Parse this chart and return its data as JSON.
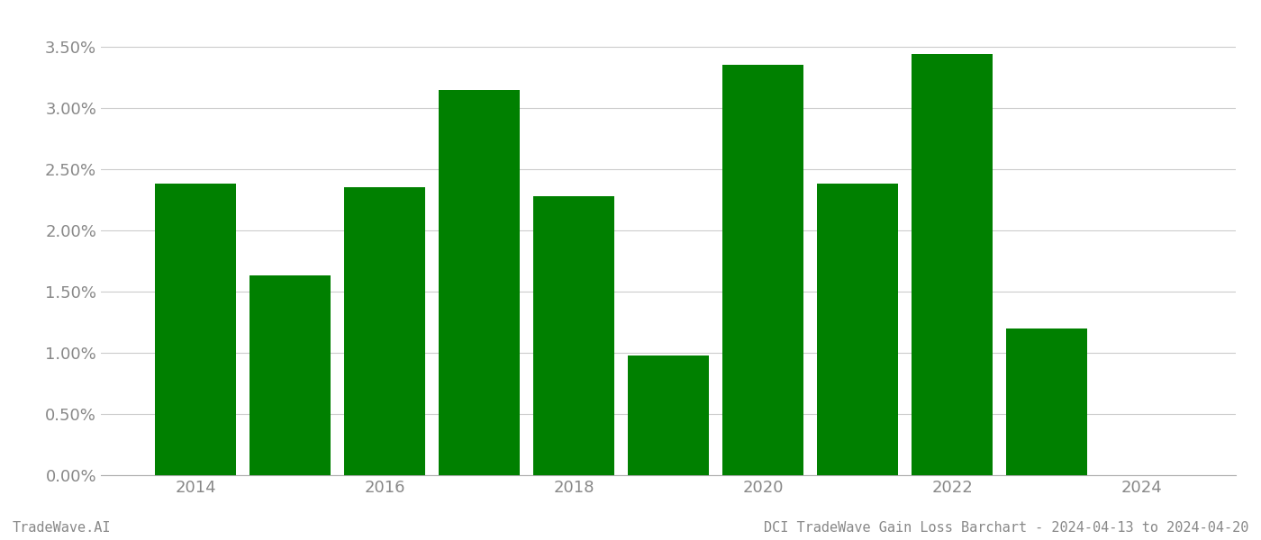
{
  "years": [
    2014,
    2015,
    2016,
    2017,
    2018,
    2019,
    2020,
    2021,
    2022,
    2023
  ],
  "values": [
    0.0238,
    0.0163,
    0.0235,
    0.0315,
    0.0228,
    0.0098,
    0.0335,
    0.0238,
    0.0344,
    0.012
  ],
  "bar_color": "#008000",
  "ylim": [
    0,
    0.0375
  ],
  "yticks": [
    0.0,
    0.005,
    0.01,
    0.015,
    0.02,
    0.025,
    0.03,
    0.035
  ],
  "ytick_labels": [
    "0.00%",
    "0.50%",
    "1.00%",
    "1.50%",
    "2.00%",
    "2.50%",
    "3.00%",
    "3.50%"
  ],
  "xticks": [
    2014,
    2016,
    2018,
    2020,
    2022,
    2024
  ],
  "xtick_labels": [
    "2014",
    "2016",
    "2018",
    "2020",
    "2022",
    "2024"
  ],
  "tick_fontsize": 13,
  "tick_color": "#888888",
  "grid_color": "#cccccc",
  "footer_left": "TradeWave.AI",
  "footer_right": "DCI TradeWave Gain Loss Barchart - 2024-04-13 to 2024-04-20",
  "footer_fontsize": 11,
  "background_color": "#ffffff",
  "bar_width": 0.85,
  "xlim": [
    2013.0,
    2025.0
  ]
}
